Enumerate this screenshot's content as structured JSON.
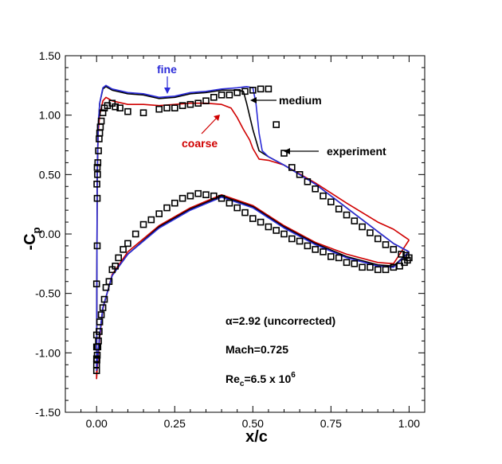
{
  "chart_data": {
    "type": "line",
    "title": "",
    "xlabel": "x/c",
    "ylabel": "-C",
    "ylabel_subscript": "p",
    "xlim": [
      -0.1,
      1.05
    ],
    "ylim": [
      -1.5,
      1.5
    ],
    "x_ticks": [
      "0.00",
      "0.25",
      "0.50",
      "0.75",
      "1.00"
    ],
    "y_ticks": [
      "1.50",
      "1.00",
      "0.50",
      "0.00",
      "-0.50",
      "-1.00",
      "-1.50"
    ],
    "series": [
      {
        "name": "fine",
        "color": "#2b2bd8",
        "upper": [
          [
            0.0,
            -1.15
          ],
          [
            0.002,
            0.5
          ],
          [
            0.005,
            0.9
          ],
          [
            0.01,
            1.1
          ],
          [
            0.02,
            1.23
          ],
          [
            0.03,
            1.25
          ],
          [
            0.05,
            1.22
          ],
          [
            0.1,
            1.19
          ],
          [
            0.15,
            1.18
          ],
          [
            0.2,
            1.15
          ],
          [
            0.25,
            1.16
          ],
          [
            0.3,
            1.19
          ],
          [
            0.35,
            1.2
          ],
          [
            0.4,
            1.22
          ],
          [
            0.45,
            1.23
          ],
          [
            0.48,
            1.24
          ],
          [
            0.5,
            1.23
          ],
          [
            0.51,
            1.1
          ],
          [
            0.52,
            0.85
          ],
          [
            0.53,
            0.7
          ],
          [
            0.55,
            0.65
          ],
          [
            0.6,
            0.58
          ],
          [
            0.7,
            0.42
          ],
          [
            0.8,
            0.22
          ],
          [
            0.9,
            0.02
          ],
          [
            0.95,
            -0.08
          ],
          [
            1.0,
            -0.15
          ]
        ],
        "lower": [
          [
            0.0,
            -1.15
          ],
          [
            0.003,
            -1.05
          ],
          [
            0.01,
            -0.85
          ],
          [
            0.02,
            -0.62
          ],
          [
            0.05,
            -0.35
          ],
          [
            0.1,
            -0.17
          ],
          [
            0.2,
            0.05
          ],
          [
            0.3,
            0.2
          ],
          [
            0.4,
            0.31
          ],
          [
            0.5,
            0.22
          ],
          [
            0.6,
            0.05
          ],
          [
            0.7,
            -0.09
          ],
          [
            0.8,
            -0.2
          ],
          [
            0.9,
            -0.27
          ],
          [
            0.95,
            -0.28
          ],
          [
            1.0,
            -0.15
          ]
        ]
      },
      {
        "name": "medium",
        "color": "#000000",
        "upper": [
          [
            0.0,
            -1.15
          ],
          [
            0.002,
            0.5
          ],
          [
            0.005,
            0.9
          ],
          [
            0.01,
            1.1
          ],
          [
            0.02,
            1.22
          ],
          [
            0.03,
            1.24
          ],
          [
            0.05,
            1.21
          ],
          [
            0.1,
            1.18
          ],
          [
            0.15,
            1.17
          ],
          [
            0.2,
            1.14
          ],
          [
            0.25,
            1.15
          ],
          [
            0.3,
            1.18
          ],
          [
            0.35,
            1.19
          ],
          [
            0.4,
            1.21
          ],
          [
            0.45,
            1.21
          ],
          [
            0.47,
            1.2
          ],
          [
            0.48,
            1.1
          ],
          [
            0.5,
            0.88
          ],
          [
            0.52,
            0.7
          ],
          [
            0.55,
            0.65
          ],
          [
            0.6,
            0.58
          ],
          [
            0.7,
            0.42
          ],
          [
            0.8,
            0.22
          ],
          [
            0.9,
            0.02
          ],
          [
            0.95,
            -0.08
          ],
          [
            1.0,
            -0.15
          ]
        ],
        "lower": [
          [
            0.0,
            -1.15
          ],
          [
            0.003,
            -1.05
          ],
          [
            0.01,
            -0.85
          ],
          [
            0.02,
            -0.62
          ],
          [
            0.05,
            -0.35
          ],
          [
            0.1,
            -0.17
          ],
          [
            0.2,
            0.06
          ],
          [
            0.3,
            0.21
          ],
          [
            0.4,
            0.32
          ],
          [
            0.5,
            0.23
          ],
          [
            0.6,
            0.06
          ],
          [
            0.7,
            -0.08
          ],
          [
            0.8,
            -0.19
          ],
          [
            0.9,
            -0.26
          ],
          [
            0.95,
            -0.27
          ],
          [
            1.0,
            -0.15
          ]
        ]
      },
      {
        "name": "coarse",
        "color": "#d00000",
        "upper": [
          [
            0.0,
            -1.22
          ],
          [
            0.002,
            0.45
          ],
          [
            0.005,
            0.85
          ],
          [
            0.01,
            1.0
          ],
          [
            0.02,
            1.12
          ],
          [
            0.03,
            1.15
          ],
          [
            0.05,
            1.12
          ],
          [
            0.1,
            1.09
          ],
          [
            0.15,
            1.09
          ],
          [
            0.2,
            1.08
          ],
          [
            0.25,
            1.09
          ],
          [
            0.3,
            1.1
          ],
          [
            0.35,
            1.1
          ],
          [
            0.4,
            1.09
          ],
          [
            0.43,
            1.06
          ],
          [
            0.45,
            0.98
          ],
          [
            0.47,
            0.88
          ],
          [
            0.49,
            0.79
          ],
          [
            0.5,
            0.72
          ],
          [
            0.52,
            0.63
          ],
          [
            0.55,
            0.62
          ],
          [
            0.6,
            0.58
          ],
          [
            0.7,
            0.43
          ],
          [
            0.8,
            0.26
          ],
          [
            0.9,
            0.1
          ],
          [
            0.95,
            0.04
          ],
          [
            1.0,
            -0.05
          ]
        ],
        "lower": [
          [
            0.0,
            -1.22
          ],
          [
            0.003,
            -1.1
          ],
          [
            0.01,
            -0.88
          ],
          [
            0.02,
            -0.63
          ],
          [
            0.05,
            -0.34
          ],
          [
            0.1,
            -0.15
          ],
          [
            0.2,
            0.07
          ],
          [
            0.3,
            0.22
          ],
          [
            0.4,
            0.33
          ],
          [
            0.5,
            0.24
          ],
          [
            0.6,
            0.07
          ],
          [
            0.7,
            -0.07
          ],
          [
            0.8,
            -0.17
          ],
          [
            0.9,
            -0.24
          ],
          [
            0.95,
            -0.25
          ],
          [
            1.0,
            -0.05
          ]
        ]
      }
    ],
    "experiment": {
      "name": "experiment",
      "color": "#000000",
      "points": [
        [
          0.0,
          -1.15
        ],
        [
          0.0,
          -1.1
        ],
        [
          0.0,
          -1.05
        ],
        [
          0.0,
          -0.95
        ],
        [
          0.002,
          -0.1
        ],
        [
          0.002,
          0.3
        ],
        [
          0.003,
          0.5
        ],
        [
          0.004,
          0.6
        ],
        [
          0.006,
          0.7
        ],
        [
          0.008,
          0.8
        ],
        [
          0.01,
          0.85
        ],
        [
          0.012,
          0.9
        ],
        [
          0.015,
          0.95
        ],
        [
          0.02,
          1.02
        ],
        [
          0.025,
          1.06
        ],
        [
          0.035,
          1.08
        ],
        [
          0.05,
          1.1
        ],
        [
          0.06,
          1.07
        ],
        [
          0.075,
          1.06
        ],
        [
          0.1,
          1.03
        ],
        [
          0.15,
          1.02
        ],
        [
          0.2,
          1.05
        ],
        [
          0.225,
          1.06
        ],
        [
          0.25,
          1.06
        ],
        [
          0.275,
          1.08
        ],
        [
          0.3,
          1.09
        ],
        [
          0.325,
          1.1
        ],
        [
          0.35,
          1.12
        ],
        [
          0.375,
          1.15
        ],
        [
          0.4,
          1.17
        ],
        [
          0.425,
          1.17
        ],
        [
          0.45,
          1.19
        ],
        [
          0.475,
          1.2
        ],
        [
          0.5,
          1.21
        ],
        [
          0.525,
          1.22
        ],
        [
          0.55,
          1.22
        ],
        [
          0.575,
          0.92
        ],
        [
          0.6,
          0.68
        ],
        [
          0.625,
          0.56
        ],
        [
          0.65,
          0.5
        ],
        [
          0.675,
          0.44
        ],
        [
          0.7,
          0.38
        ],
        [
          0.725,
          0.32
        ],
        [
          0.75,
          0.27
        ],
        [
          0.775,
          0.21
        ],
        [
          0.8,
          0.16
        ],
        [
          0.825,
          0.11
        ],
        [
          0.85,
          0.06
        ],
        [
          0.875,
          0.01
        ],
        [
          0.9,
          -0.04
        ],
        [
          0.925,
          -0.09
        ],
        [
          0.95,
          -0.13
        ],
        [
          0.975,
          -0.17
        ],
        [
          0.99,
          -0.18
        ],
        [
          1.0,
          -0.2
        ],
        [
          0.995,
          -0.22
        ],
        [
          0.985,
          -0.24
        ],
        [
          0.97,
          -0.27
        ],
        [
          0.95,
          -0.28
        ],
        [
          0.925,
          -0.3
        ],
        [
          0.9,
          -0.3
        ],
        [
          0.875,
          -0.28
        ],
        [
          0.85,
          -0.28
        ],
        [
          0.825,
          -0.25
        ],
        [
          0.8,
          -0.24
        ],
        [
          0.775,
          -0.2
        ],
        [
          0.75,
          -0.19
        ],
        [
          0.725,
          -0.15
        ],
        [
          0.7,
          -0.13
        ],
        [
          0.675,
          -0.1
        ],
        [
          0.65,
          -0.06
        ],
        [
          0.625,
          -0.04
        ],
        [
          0.6,
          0.0
        ],
        [
          0.575,
          0.03
        ],
        [
          0.55,
          0.06
        ],
        [
          0.525,
          0.1
        ],
        [
          0.5,
          0.13
        ],
        [
          0.475,
          0.18
        ],
        [
          0.45,
          0.22
        ],
        [
          0.425,
          0.26
        ],
        [
          0.4,
          0.3
        ],
        [
          0.375,
          0.32
        ],
        [
          0.35,
          0.33
        ],
        [
          0.325,
          0.34
        ],
        [
          0.3,
          0.32
        ],
        [
          0.275,
          0.3
        ],
        [
          0.25,
          0.26
        ],
        [
          0.225,
          0.22
        ],
        [
          0.2,
          0.17
        ],
        [
          0.175,
          0.12
        ],
        [
          0.15,
          0.08
        ],
        [
          0.125,
          0.0
        ],
        [
          0.1,
          -0.08
        ],
        [
          0.085,
          -0.13
        ],
        [
          0.07,
          -0.2
        ],
        [
          0.06,
          -0.27
        ],
        [
          0.05,
          -0.3
        ],
        [
          0.04,
          -0.4
        ],
        [
          0.03,
          -0.45
        ],
        [
          0.025,
          -0.55
        ],
        [
          0.02,
          -0.62
        ],
        [
          0.015,
          -0.68
        ],
        [
          0.01,
          -0.74
        ],
        [
          0.008,
          -0.82
        ],
        [
          0.006,
          -0.9
        ],
        [
          0.004,
          -0.95
        ],
        [
          0.002,
          -1.02
        ],
        [
          0.001,
          -1.06
        ],
        [
          0.0,
          -0.85
        ],
        [
          0.0,
          -0.42
        ],
        [
          0.001,
          0.42
        ],
        [
          0.002,
          0.56
        ]
      ]
    },
    "annotations": {
      "fine": {
        "text": "fine",
        "color": "#2b2bd8"
      },
      "medium": {
        "text": "medium",
        "color": "#000000"
      },
      "coarse": {
        "text": "coarse",
        "color": "#d00000"
      },
      "experiment": {
        "text": "experiment",
        "color": "#000000"
      }
    },
    "conditions": {
      "alpha": "α=2.92 (uncorrected)",
      "mach": "Mach=0.725",
      "re_base": "Re",
      "re_sub": "c",
      "re_value": "=6.5 x 10",
      "re_exp": "6"
    }
  }
}
